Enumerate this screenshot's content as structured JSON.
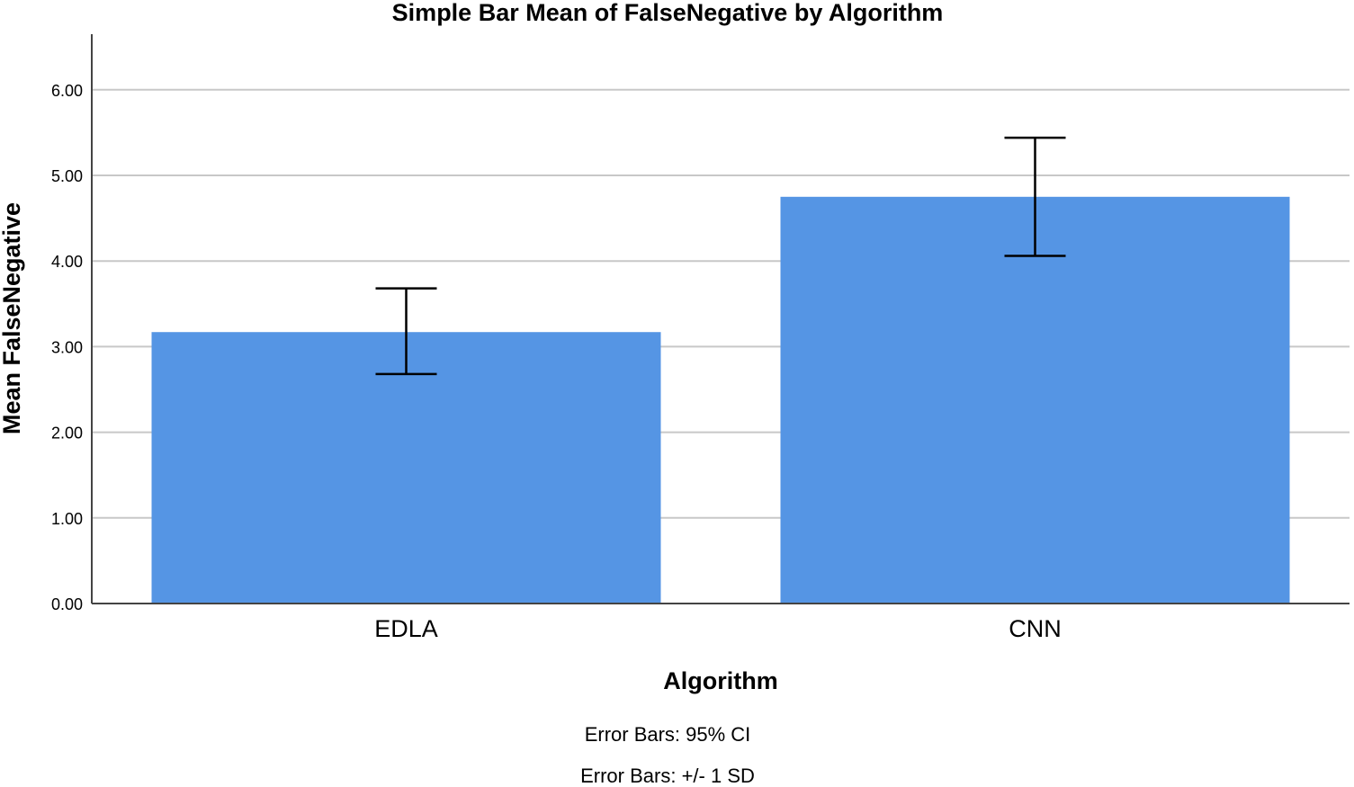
{
  "chart_data": {
    "type": "bar",
    "title": "Simple Bar Mean of FalseNegative by Algorithm",
    "xlabel": "Algorithm",
    "ylabel": "Mean FalseNegative",
    "categories": [
      "EDLA",
      "CNN"
    ],
    "values": [
      3.17,
      4.75
    ],
    "error_bars": [
      {
        "low": 2.68,
        "high": 3.68
      },
      {
        "low": 4.06,
        "high": 5.44
      }
    ],
    "ylim": [
      0,
      6.6
    ],
    "yticks": [
      "0.00",
      "1.00",
      "2.00",
      "3.00",
      "4.00",
      "5.00",
      "6.00"
    ],
    "grid": true,
    "bar_color": "#5595e4",
    "notes": [
      "Error Bars: 95% CI",
      "Error Bars: +/- 1 SD"
    ]
  }
}
